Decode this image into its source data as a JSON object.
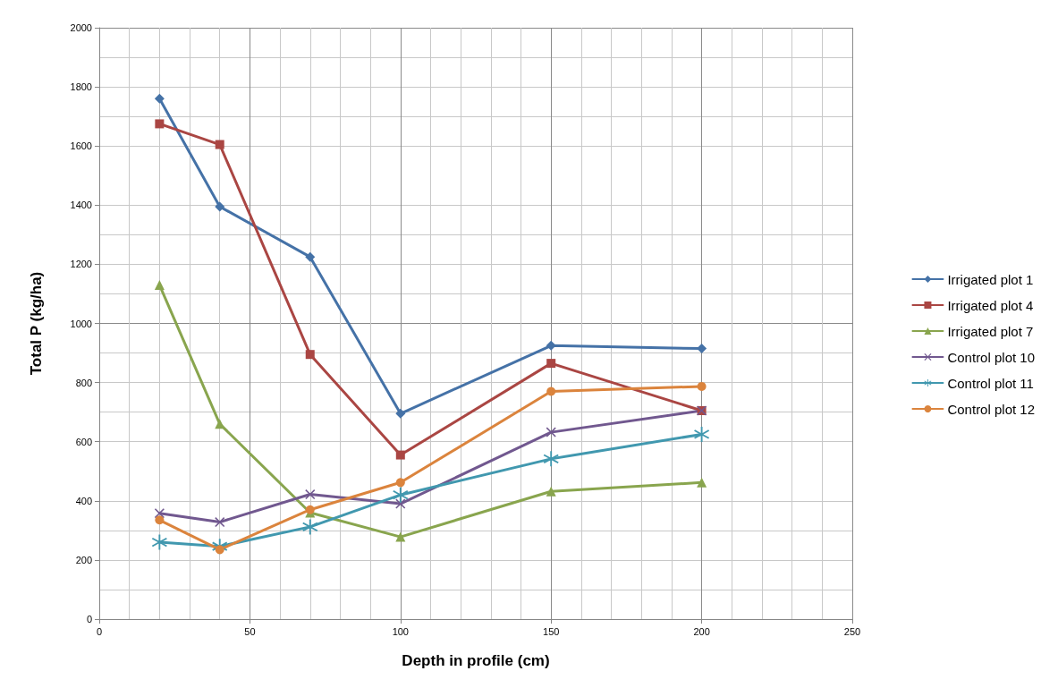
{
  "chart_data": {
    "type": "line",
    "xlabel": "Depth in profile (cm)",
    "ylabel": "Total P (kg/ha)",
    "x": [
      20,
      40,
      70,
      100,
      150,
      200
    ],
    "series": [
      {
        "name": "Irrigated plot 1",
        "color": "#4572a7",
        "marker": "diamond",
        "values": [
          1760,
          1395,
          1225,
          695,
          925,
          915
        ]
      },
      {
        "name": "Irrigated plot 4",
        "color": "#aa4643",
        "marker": "square",
        "values": [
          1675,
          1605,
          895,
          555,
          865,
          705
        ]
      },
      {
        "name": "Irrigated plot 7",
        "color": "#89a54e",
        "marker": "triangle",
        "values": [
          1130,
          660,
          360,
          278,
          432,
          462
        ]
      },
      {
        "name": "Control plot 10",
        "color": "#71588f",
        "marker": "cross",
        "values": [
          358,
          328,
          422,
          390,
          632,
          705
        ]
      },
      {
        "name": "Control plot 11",
        "color": "#4198af",
        "marker": "star",
        "values": [
          260,
          246,
          312,
          420,
          542,
          625
        ]
      },
      {
        "name": "Control plot 12",
        "color": "#db843d",
        "marker": "circle",
        "values": [
          335,
          235,
          370,
          462,
          770,
          787
        ]
      }
    ],
    "xlim": [
      0,
      250
    ],
    "xticks": [
      0,
      50,
      100,
      150,
      200,
      250
    ],
    "ylim": [
      0,
      2000
    ],
    "yticks": [
      0,
      200,
      400,
      600,
      800,
      1000,
      1200,
      1400,
      1600,
      1800,
      2000
    ],
    "grid": true,
    "legend": "right",
    "line_style": "solid"
  }
}
